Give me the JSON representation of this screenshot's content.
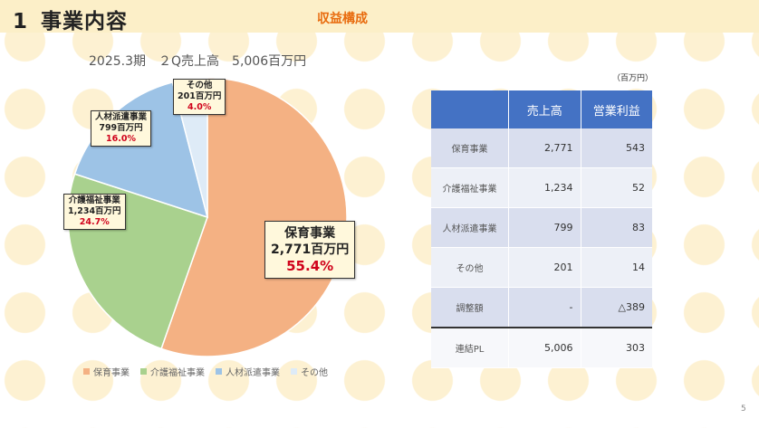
{
  "header": {
    "number": "1",
    "title": "事業内容",
    "subtitle": "収益構成"
  },
  "chart_title": {
    "period": "2025.3期",
    "metric": "２Q売上高",
    "total": "5,006百万円"
  },
  "chart_data": {
    "type": "pie",
    "title": "2025.3期 ２Q売上高 5,006百万円",
    "unit": "百万円",
    "categories": [
      "保育事業",
      "介護福祉事業",
      "人材派遣事業",
      "その他"
    ],
    "values": [
      2771,
      1234,
      799,
      201
    ],
    "value_labels": [
      "2,771百万円",
      "1,234百万円",
      "799百万円",
      "201百万円"
    ],
    "percent_labels": [
      "55.4%",
      "24.7%",
      "16.0%",
      "4.0%"
    ],
    "colors": [
      "#f4b183",
      "#a9d18e",
      "#9dc3e6",
      "#deebf7"
    ],
    "legend": "bottom"
  },
  "legend": [
    "保育事業",
    "介護福祉事業",
    "人材派遣事業",
    "その他"
  ],
  "table": {
    "unit": "（百万円）",
    "headers": [
      "",
      "売上高",
      "営業利益"
    ],
    "rows": [
      {
        "label": "保育事業",
        "sales": "2,771",
        "profit": "543"
      },
      {
        "label": "介護福祉事業",
        "sales": "1,234",
        "profit": "52"
      },
      {
        "label": "人材派遣事業",
        "sales": "799",
        "profit": "83"
      },
      {
        "label": "その他",
        "sales": "201",
        "profit": "14"
      },
      {
        "label": "調整額",
        "sales": "-",
        "profit": "△389"
      }
    ],
    "total": {
      "label": "連結PL",
      "sales": "5,006",
      "profit": "303"
    }
  },
  "page_number": "5"
}
